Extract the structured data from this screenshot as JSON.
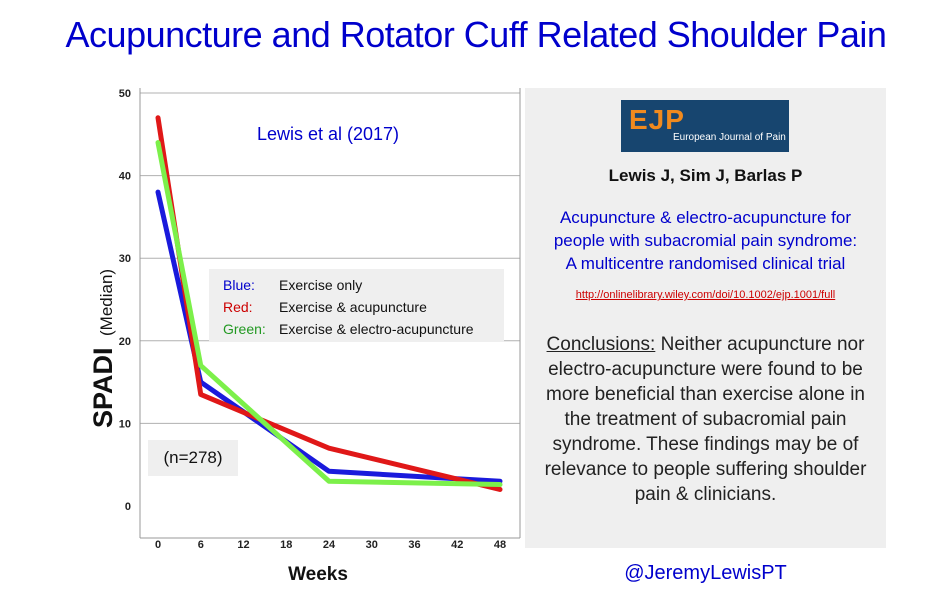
{
  "page": {
    "title": "Acupuncture and Rotator Cuff Related Shoulder Pain"
  },
  "chart_data": {
    "type": "line",
    "annotation": "Lewis et al (2017)",
    "xlabel": "Weeks",
    "ylabel": "SPADI",
    "ylabel_sub": "(Median)",
    "x_ticks": [
      0,
      6,
      12,
      18,
      24,
      30,
      36,
      42,
      48
    ],
    "y_ticks": [
      0,
      10,
      20,
      30,
      40,
      50
    ],
    "xlim": [
      0,
      48
    ],
    "ylim": [
      0,
      50
    ],
    "grid": "horizontal",
    "sample_note": "(n=278)",
    "legend": [
      {
        "key": "Blue:",
        "text": "Exercise only",
        "color": "#0000cc"
      },
      {
        "key": "Red:",
        "text": "Exercise & acupuncture",
        "color": "#cc0000"
      },
      {
        "key": "Green:",
        "text": "Exercise & electro-acupuncture",
        "color": "#229922"
      }
    ],
    "series": [
      {
        "color": "#1a1adc",
        "x": [
          0,
          6,
          24,
          48
        ],
        "y": [
          38,
          15,
          4.2,
          3.0
        ]
      },
      {
        "color": "#e01818",
        "x": [
          0,
          6,
          24,
          48
        ],
        "y": [
          47,
          13.5,
          7,
          2.0
        ]
      },
      {
        "color": "#7cf04a",
        "x": [
          0,
          6,
          24,
          48
        ],
        "y": [
          44,
          17,
          3.0,
          2.6
        ]
      }
    ]
  },
  "panel": {
    "logo_mark": "EJP",
    "logo_sub": "European Journal of Pain",
    "authors": "Lewis J, Sim J, Barlas P",
    "paper_title_lines": [
      "Acupuncture & electro-acupuncture for",
      "people with subacromial pain syndrome:",
      "A multicentre randomised clinical trial"
    ],
    "url": "http://onlinelibrary.wiley.com/doi/10.1002/ejp.1001/full",
    "conclusions_label": "Conclusions:",
    "conclusions_text": " Neither acupuncture nor electro-acupuncture were found to be more beneficial than exercise alone in the treatment of subacromial pain syndrome. These findings may be of relevance to people suffering shoulder pain & clinicians."
  },
  "footer": {
    "handle": "@JeremyLewisPT"
  },
  "colors": {
    "title_blue": "#0000cc",
    "url_red": "#cc0000",
    "panel_bg": "#efefef"
  }
}
